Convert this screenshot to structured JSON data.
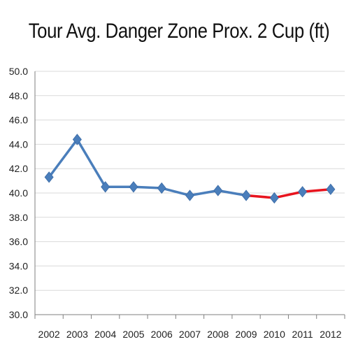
{
  "chart_data": {
    "type": "line",
    "title": "Tour Avg. Danger Zone Prox. 2 Cup (ft)",
    "xlabel": "",
    "ylabel": "",
    "ylim": [
      30.0,
      50.0
    ],
    "y_ticks": [
      "30.0",
      "32.0",
      "34.0",
      "36.0",
      "38.0",
      "40.0",
      "42.0",
      "44.0",
      "46.0",
      "48.0",
      "50.0"
    ],
    "categories": [
      "2002",
      "2003",
      "2004",
      "2005",
      "2006",
      "2007",
      "2008",
      "2009",
      "2010",
      "2011",
      "2012"
    ],
    "values": [
      41.3,
      44.4,
      40.5,
      40.5,
      40.4,
      39.8,
      40.2,
      39.8,
      39.6,
      40.1,
      40.3
    ],
    "grid": "horizontal",
    "legend": "none",
    "colors": {
      "series": "#4a7ebb",
      "highlight": "#e8141e",
      "grid": "#d9d9d9",
      "axis": "#7f7f7f"
    },
    "highlight_range": [
      "2009",
      "2012"
    ]
  }
}
